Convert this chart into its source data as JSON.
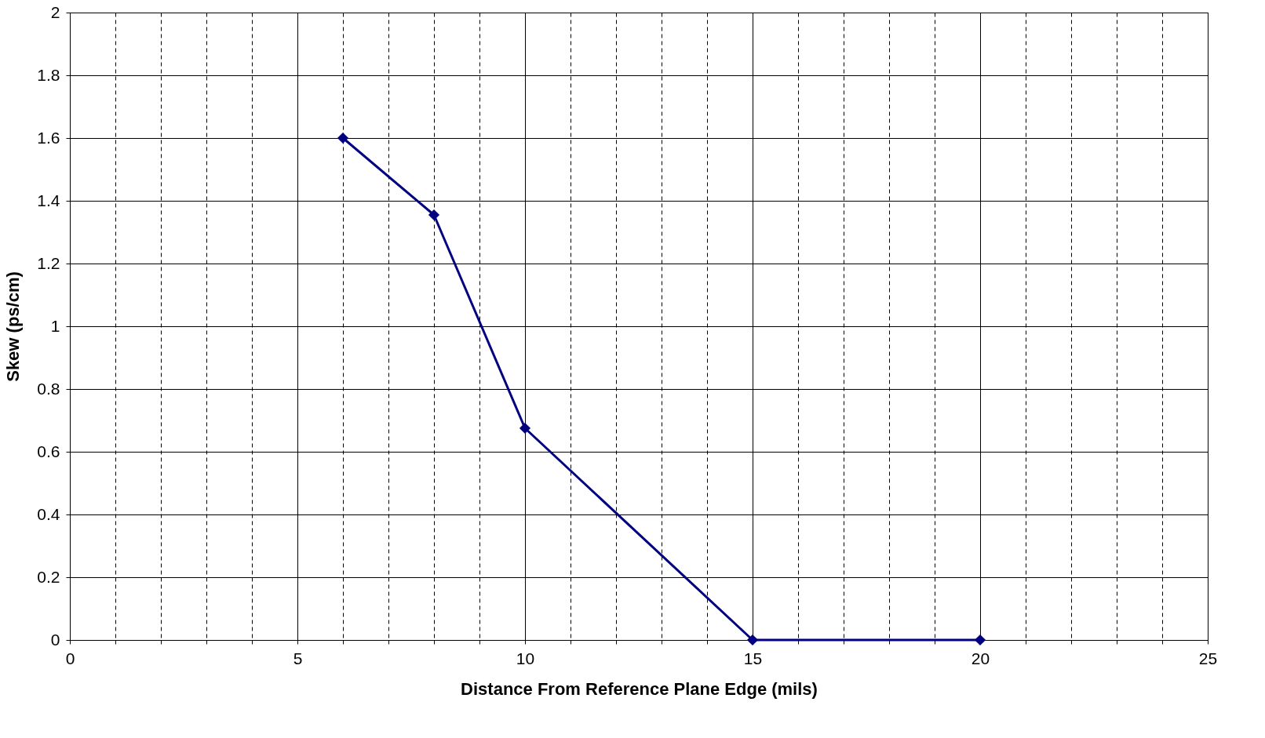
{
  "chart_data": {
    "type": "line",
    "xlabel": "Distance From Reference Plane Edge (mils)",
    "ylabel": "Skew (ps/cm)",
    "x": [
      6,
      8,
      10,
      15,
      20
    ],
    "series": [
      {
        "color": "#000080",
        "values": [
          1.6,
          1.355,
          0.675,
          0,
          0
        ]
      }
    ],
    "xlim": [
      0,
      25
    ],
    "xticks": [
      0,
      {
        "value": 1,
        "label": null
      },
      {
        "value": 2,
        "label": null
      },
      {
        "value": 3,
        "label": null
      },
      {
        "value": 4,
        "label": null
      },
      5,
      {
        "value": 6,
        "label": null
      },
      {
        "value": 7,
        "label": null
      },
      {
        "value": 8,
        "label": null
      },
      {
        "value": 9,
        "label": null
      },
      10,
      {
        "value": 11,
        "label": null
      },
      {
        "value": 12,
        "label": null
      },
      {
        "value": 13,
        "label": null
      },
      {
        "value": 14,
        "label": null
      },
      15,
      {
        "value": 16,
        "label": null
      },
      {
        "value": 17,
        "label": null
      },
      {
        "value": 18,
        "label": null
      },
      {
        "value": 19,
        "label": null
      },
      20,
      {
        "value": 21,
        "label": null
      },
      {
        "value": 22,
        "label": null
      },
      {
        "value": 23,
        "label": null
      },
      {
        "value": 24,
        "label": null
      },
      25
    ],
    "ylim": [
      0,
      2
    ],
    "yticks": [
      0,
      0.2,
      0.4,
      0.6,
      0.8,
      1,
      1.2,
      1.4,
      1.6,
      1.8,
      2
    ],
    "grid": true,
    "marker": "diamond",
    "line_style": "solid"
  }
}
